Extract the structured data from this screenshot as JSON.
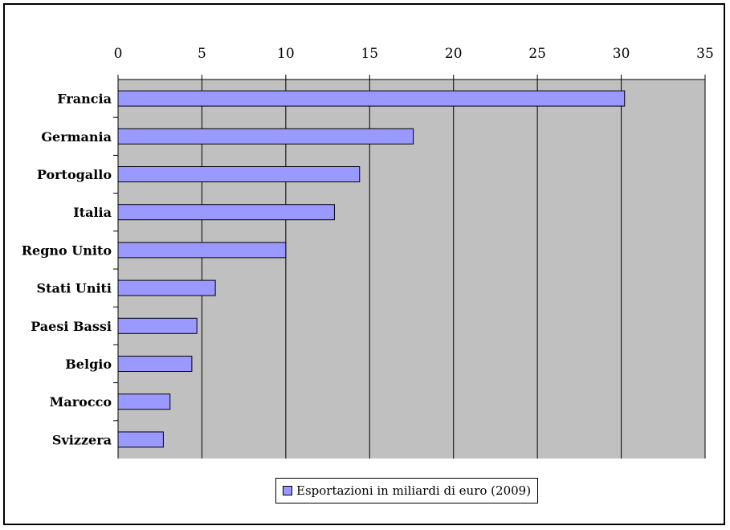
{
  "chart_data": {
    "type": "bar",
    "orientation": "horizontal",
    "categories": [
      "Francia",
      "Germania",
      "Portogallo",
      "Italia",
      "Regno Unito",
      "Stati Uniti",
      "Paesi Bassi",
      "Belgio",
      "Marocco",
      "Svizzera"
    ],
    "series": [
      {
        "name": "Esportazioni in miliardi di euro (2009)",
        "values": [
          30.2,
          17.6,
          14.4,
          12.9,
          10.0,
          5.8,
          4.7,
          4.4,
          3.1,
          2.7
        ],
        "color": "#9999ff"
      }
    ],
    "xlim": [
      0,
      35
    ],
    "xticks": [
      "0",
      "5",
      "10",
      "15",
      "20",
      "25",
      "30",
      "35"
    ],
    "x_axis_position": "top",
    "plot_background": "#c0c0c0",
    "grid": "vertical",
    "legend": {
      "placement": "bottom-center",
      "label": "Esportazioni in miliardi di euro (2009)"
    },
    "title": "",
    "xlabel": "",
    "ylabel": ""
  }
}
